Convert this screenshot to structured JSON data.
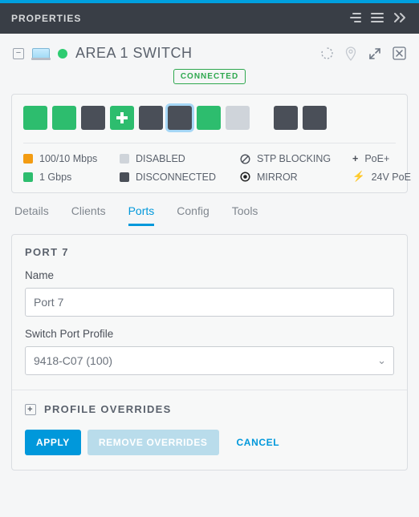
{
  "header": {
    "title": "PROPERTIES"
  },
  "device": {
    "title": "AREA 1 SWITCH",
    "status_color": "#2ecc71",
    "connected_label": "CONNECTED"
  },
  "ports_visual": {
    "slots": [
      {
        "state": "green"
      },
      {
        "state": "green"
      },
      {
        "state": "dark"
      },
      {
        "state": "plus"
      },
      {
        "state": "dark"
      },
      {
        "state": "dark",
        "selected": true
      },
      {
        "state": "green"
      },
      {
        "state": "light"
      },
      {
        "gap": true
      },
      {
        "state": "dark"
      },
      {
        "state": "dark"
      }
    ],
    "colors": {
      "green": "#2dbd6e",
      "dark": "#4a4f58",
      "light": "#cfd4da",
      "orange": "#f39c12",
      "selected_ring": "#a6d7f6"
    }
  },
  "legend": {
    "c1a": "100/10 Mbps",
    "c1b": "1 Gbps",
    "c2a": "DISABLED",
    "c2b": "DISCONNECTED",
    "c3a": "STP BLOCKING",
    "c3b": "MIRROR",
    "c4a": "PoE+",
    "c4b": "24V PoE"
  },
  "tabs": {
    "items": [
      {
        "label": "Details",
        "active": false
      },
      {
        "label": "Clients",
        "active": false
      },
      {
        "label": "Ports",
        "active": true
      },
      {
        "label": "Config",
        "active": false
      },
      {
        "label": "Tools",
        "active": false
      }
    ]
  },
  "port_form": {
    "section_title": "PORT 7",
    "name_label": "Name",
    "name_value": "Port 7",
    "profile_label": "Switch Port Profile",
    "profile_value": "9418-C07 (100)",
    "overrides_label": "PROFILE OVERRIDES",
    "apply_label": "APPLY",
    "remove_label": "REMOVE OVERRIDES",
    "cancel_label": "CANCEL"
  },
  "colors": {
    "accent": "#0098db",
    "muted_btn": "#b9dceb",
    "panel_header_bg": "#393e46",
    "border": "#dadde1",
    "text": "#5b626d"
  }
}
